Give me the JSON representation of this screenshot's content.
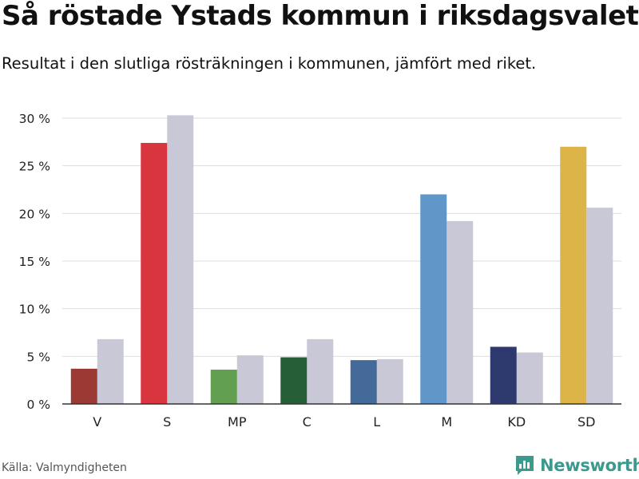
{
  "header": {
    "title": "Så röstade Ystads kommun i riksdagsvalet",
    "subtitle": "Resultat i den slutliga rösträkningen i kommunen, jämfört med riket."
  },
  "footer": {
    "source": "Källa: Valmyndigheten",
    "brand": "Newsworthy",
    "brand_icon": "bar-chart-icon",
    "brand_color": "#3b9a8d"
  },
  "chart_data": {
    "type": "bar",
    "categories": [
      "V",
      "S",
      "MP",
      "C",
      "L",
      "M",
      "KD",
      "SD"
    ],
    "series": [
      {
        "values": [
          3.7,
          27.4,
          3.6,
          4.9,
          4.6,
          22.0,
          6.0,
          27.0
        ]
      },
      {
        "values": [
          6.8,
          30.3,
          5.1,
          6.8,
          4.7,
          19.2,
          5.4,
          20.6
        ]
      }
    ],
    "party_colors": [
      "#9b3a34",
      "#d9353e",
      "#629f50",
      "#265f37",
      "#436a99",
      "#6196c8",
      "#2e3a6e",
      "#ddb447"
    ],
    "comparison_color": "#c9c8d6",
    "yticks": [
      0,
      5,
      10,
      15,
      20,
      25,
      30
    ],
    "ytick_labels": [
      "0 %",
      "5 %",
      "10 %",
      "15 %",
      "20 %",
      "25 %",
      "30 %"
    ],
    "ylim": [
      0,
      30
    ],
    "grid": true
  }
}
